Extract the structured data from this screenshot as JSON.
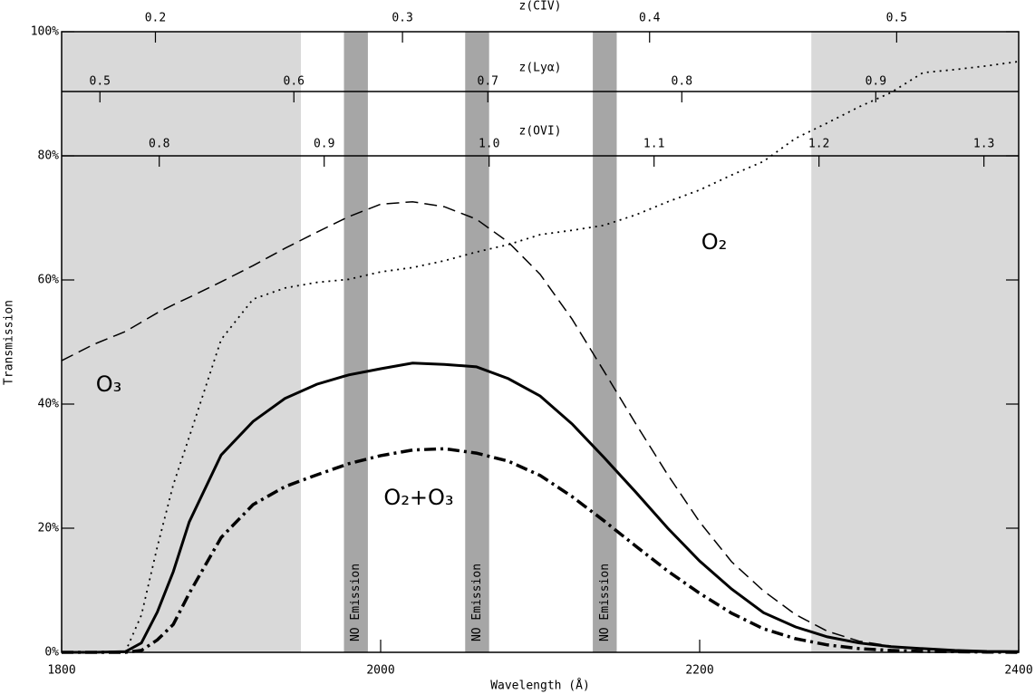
{
  "chart_data": {
    "type": "line",
    "xlabel": "Wavelength (Å)",
    "ylabel": "Transmission",
    "xlim": [
      1800,
      2400
    ],
    "xticks": [
      1800,
      2000,
      2200,
      2400
    ],
    "ylim": [
      0,
      100
    ],
    "yticks": [
      {
        "value": 0,
        "label": "0%"
      },
      {
        "value": 20,
        "label": "20%"
      },
      {
        "value": 40,
        "label": "40%"
      },
      {
        "value": 60,
        "label": "60%"
      },
      {
        "value": 80,
        "label": "80%"
      },
      {
        "value": 100,
        "label": "100%"
      }
    ],
    "x": [
      1800,
      1820,
      1840,
      1850,
      1860,
      1870,
      1880,
      1900,
      1920,
      1940,
      1960,
      1980,
      2000,
      2020,
      2040,
      2060,
      2080,
      2100,
      2120,
      2140,
      2160,
      2180,
      2200,
      2220,
      2240,
      2260,
      2280,
      2300,
      2320,
      2340,
      2360,
      2380,
      2400
    ],
    "series": [
      {
        "color": "#000000",
        "dash": "solid",
        "values": [
          0,
          0,
          0.1,
          1.5,
          6.5,
          13,
          21,
          31.8,
          37.2,
          40.9,
          43.2,
          44.7,
          45.7,
          46.6,
          46.4,
          46,
          44.1,
          41.3,
          36.8,
          31.4,
          25.8,
          20,
          14.7,
          10.2,
          6.4,
          4.1,
          2.5,
          1.5,
          0.9,
          0.6,
          0.3,
          0.15,
          0.1
        ]
      },
      {
        "color": "#000000",
        "dash": "dashdot",
        "values": [
          0,
          0,
          0,
          0.3,
          2,
          4.5,
          9.5,
          18.5,
          23.8,
          26.7,
          28.6,
          30.4,
          31.7,
          32.6,
          32.8,
          32.1,
          30.8,
          28.5,
          25.1,
          21.2,
          17.1,
          13.1,
          9.5,
          6.3,
          3.8,
          2.2,
          1.2,
          0.6,
          0.3,
          0.15,
          0.1,
          0.05,
          0
        ]
      },
      {
        "color": "#000000",
        "dash": "dashed",
        "values": [
          47,
          49.6,
          51.7,
          53.2,
          54.7,
          56,
          57.2,
          59.7,
          62.3,
          65.1,
          67.7,
          70.2,
          72.2,
          72.6,
          71.8,
          69.8,
          66.1,
          60.9,
          53.7,
          45.3,
          36.8,
          28.6,
          21,
          14.6,
          9.9,
          6.1,
          3.4,
          1.8,
          1,
          0.5,
          0.2,
          0.1,
          0.05
        ]
      },
      {
        "color": "#000000",
        "dash": "dotted",
        "values": [
          0,
          0,
          0.1,
          6,
          17,
          27,
          34.7,
          50.4,
          56.9,
          58.7,
          59.6,
          60.1,
          61.3,
          62,
          63.1,
          64.5,
          65.7,
          67.3,
          68,
          68.8,
          70.5,
          72.6,
          74.5,
          76.9,
          79.1,
          82.8,
          85.3,
          87.9,
          90.2,
          93.4,
          93.9,
          94.5,
          95.2
        ]
      }
    ],
    "shaded": [
      [
        1800,
        1950
      ],
      [
        2270,
        2400
      ]
    ],
    "shaded_color": "#d9d9d9",
    "bands": [
      {
        "range": [
          1977,
          1992
        ],
        "label": "NO Emission"
      },
      {
        "range": [
          2053,
          2068
        ],
        "label": "NO Emission"
      },
      {
        "range": [
          2133,
          2148
        ],
        "label": "NO Emission"
      }
    ],
    "band_color": "#a6a6a6",
    "annotations": [
      "O₂",
      "O₃",
      "O₂+O₃"
    ],
    "top_axes": [
      {
        "label": "z(CIV)",
        "xlim": [
          0.16204,
          0.54939
        ],
        "xticks": [
          0.2,
          0.3,
          0.4,
          0.5
        ]
      },
      {
        "label": "z(Lyα)",
        "xlim": [
          0.48026,
          0.97368
        ],
        "xticks": [
          0.5,
          0.6,
          0.7,
          0.8,
          0.9
        ]
      },
      {
        "label": "z(OVI)",
        "xlim": [
          0.74081,
          1.32108
        ],
        "xticks": [
          0.8,
          0.9,
          {
            "value": 1,
            "label": "1.0"
          },
          1.1,
          1.2,
          1.3
        ]
      }
    ]
  }
}
